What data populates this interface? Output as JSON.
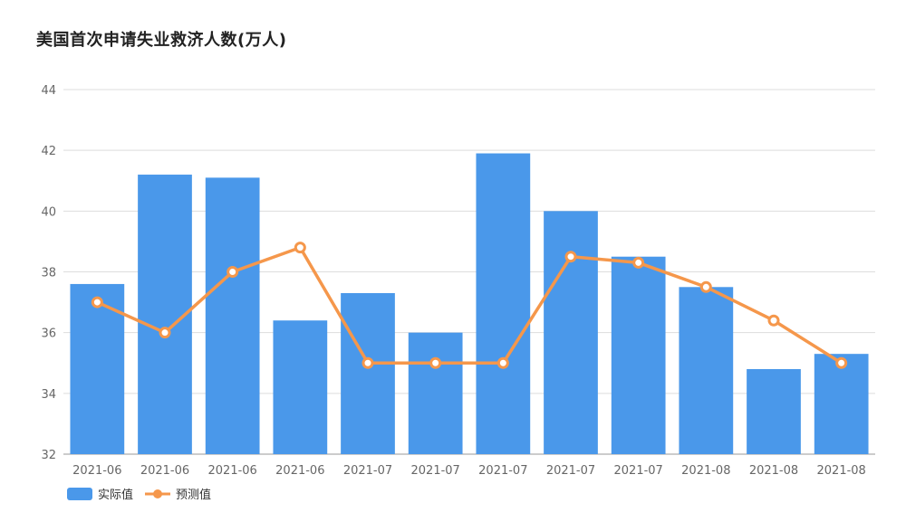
{
  "chart_data": {
    "type": "bar",
    "title": "美国首次申请失业救济人数(万人)",
    "xlabel": "",
    "ylabel": "",
    "ylim": [
      32,
      44
    ],
    "yticks": [
      32,
      34,
      36,
      38,
      40,
      42,
      44
    ],
    "grid": true,
    "legend_position": "bottom-left",
    "categories": [
      "2021-06",
      "2021-06",
      "2021-06",
      "2021-06",
      "2021-07",
      "2021-07",
      "2021-07",
      "2021-07",
      "2021-07",
      "2021-08",
      "2021-08",
      "2021-08"
    ],
    "series": [
      {
        "name": "实际值",
        "type": "bar",
        "color": "#4a98ea",
        "values": [
          37.6,
          41.2,
          41.1,
          36.4,
          37.3,
          36.0,
          41.9,
          40.0,
          38.5,
          37.5,
          34.8,
          35.3
        ]
      },
      {
        "name": "预测值",
        "type": "line",
        "color": "#f5974b",
        "values": [
          37.0,
          36.0,
          38.0,
          38.8,
          35.0,
          35.0,
          35.0,
          38.5,
          38.3,
          37.5,
          36.4,
          35.0
        ]
      }
    ]
  }
}
